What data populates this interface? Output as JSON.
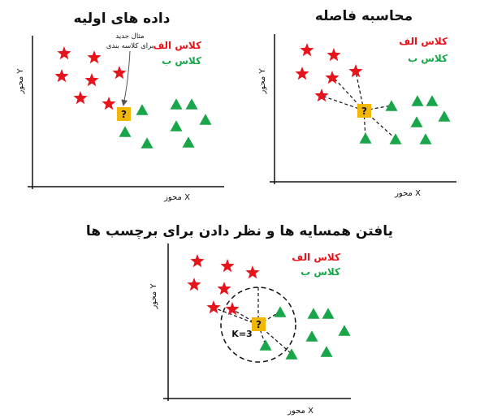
{
  "colors": {
    "class_a": "#e8141c",
    "class_b": "#19a54a",
    "unknown": "#f2b705",
    "axis": "#111111"
  },
  "panels": [
    {
      "id": "initial",
      "title": "داده های اولیه",
      "x_axis_label": "محور X",
      "y_axis_label": "محور Y",
      "legend_a": "کلاس الف",
      "legend_b": "کلاس ب",
      "note_line1": "مثال جدید",
      "note_line2": "برای کلاسه بندی",
      "unknown_label": "?"
    },
    {
      "id": "distance",
      "title": "محاسبه فاصله",
      "x_axis_label": "محور X",
      "y_axis_label": "محور Y",
      "legend_a": "کلاس الف",
      "legend_b": "کلاس ب",
      "unknown_label": "?"
    },
    {
      "id": "neighbors",
      "title": "یافتن همسایه ها و نظر دادن برای برچسب ها",
      "x_axis_label": "محور X",
      "y_axis_label": "محور Y",
      "legend_a": "کلاس الف",
      "legend_b": "کلاس ب",
      "unknown_label": "?",
      "k_label": "K=3"
    }
  ]
}
